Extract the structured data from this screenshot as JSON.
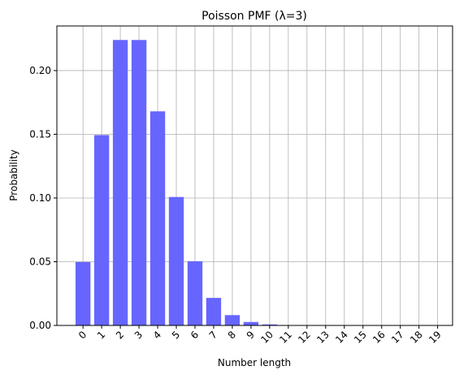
{
  "chart_data": {
    "type": "bar",
    "title": "Poisson PMF (λ=3)",
    "x_label": "Number length",
    "y_label": "Probability",
    "x": [
      0,
      1,
      2,
      3,
      4,
      5,
      6,
      7,
      8,
      9,
      10,
      11,
      12,
      13,
      14,
      15,
      16,
      17,
      18,
      19
    ],
    "values": [
      0.0498,
      0.1494,
      0.224,
      0.224,
      0.168,
      0.1008,
      0.0504,
      0.0216,
      0.0081,
      0.0027,
      0.0008,
      0.0002,
      0.0001,
      0,
      0,
      0,
      0,
      0,
      0,
      0
    ],
    "color": "#6666ff",
    "xlim": [
      -1.4,
      19.8
    ],
    "xticks": [
      0,
      1,
      2,
      3,
      4,
      5,
      6,
      7,
      8,
      9,
      10,
      11,
      12,
      13,
      14,
      15,
      16,
      17,
      18,
      19
    ],
    "ylim": [
      0,
      0.235
    ],
    "yticks": [
      {
        "value": 0,
        "label": "0.00"
      },
      {
        "value": 0.05,
        "label": "0.05"
      },
      {
        "value": 0.1,
        "label": "0.10"
      },
      {
        "value": 0.15,
        "label": "0.15"
      },
      {
        "value": 0.2,
        "label": "0.20"
      }
    ],
    "grid": true
  }
}
